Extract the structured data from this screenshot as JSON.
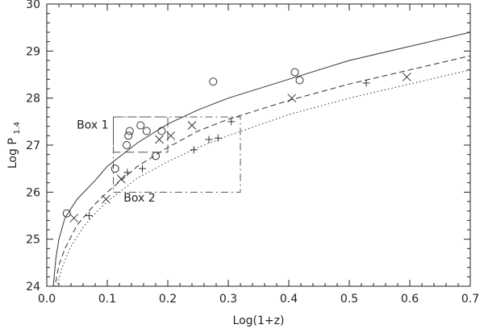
{
  "chart_data": {
    "type": "scatter",
    "title": "",
    "xlabel": "Log(1+z)",
    "ylabel_main": "Log P",
    "ylabel_sub": "1.4",
    "xlim": [
      0.0,
      0.7
    ],
    "ylim": [
      24,
      30
    ],
    "x_ticks": [
      0.0,
      0.1,
      0.2,
      0.3,
      0.4,
      0.5,
      0.6,
      0.7
    ],
    "x_tick_labels": [
      "0.0",
      "0.1",
      "0.2",
      "0.3",
      "0.4",
      "0.5",
      "0.6",
      "0.7"
    ],
    "y_ticks": [
      24,
      25,
      26,
      27,
      28,
      29,
      30
    ],
    "y_tick_labels": [
      "24",
      "25",
      "26",
      "27",
      "28",
      "29",
      "30"
    ],
    "grid": false,
    "curves": [
      {
        "style": "solid",
        "x": [
          0.01,
          0.015,
          0.02,
          0.03,
          0.05,
          0.08,
          0.1,
          0.15,
          0.2,
          0.25,
          0.3,
          0.4,
          0.5,
          0.6,
          0.7
        ],
        "y": [
          23.9,
          24.6,
          25.0,
          25.45,
          25.85,
          26.25,
          26.55,
          27.05,
          27.45,
          27.75,
          28.0,
          28.4,
          28.8,
          29.1,
          29.4
        ]
      },
      {
        "style": "dashed",
        "x": [
          0.012,
          0.02,
          0.03,
          0.05,
          0.08,
          0.1,
          0.15,
          0.2,
          0.25,
          0.3,
          0.4,
          0.5,
          0.6,
          0.7
        ],
        "y": [
          23.9,
          24.45,
          24.8,
          25.3,
          25.75,
          26.0,
          26.55,
          26.95,
          27.3,
          27.55,
          27.95,
          28.3,
          28.6,
          28.9
        ]
      },
      {
        "style": "dotted",
        "x": [
          0.015,
          0.025,
          0.04,
          0.06,
          0.08,
          0.1,
          0.15,
          0.2,
          0.25,
          0.3,
          0.4,
          0.5,
          0.6,
          0.7
        ],
        "y": [
          23.9,
          24.4,
          24.85,
          25.25,
          25.55,
          25.8,
          26.3,
          26.65,
          26.95,
          27.2,
          27.65,
          28.0,
          28.3,
          28.6
        ]
      }
    ],
    "series": [
      {
        "marker": "circle",
        "points": [
          [
            0.033,
            25.55
          ],
          [
            0.113,
            26.5
          ],
          [
            0.132,
            27.0
          ],
          [
            0.135,
            27.2
          ],
          [
            0.137,
            27.3
          ],
          [
            0.155,
            27.42
          ],
          [
            0.165,
            27.3
          ],
          [
            0.18,
            26.77
          ],
          [
            0.19,
            27.3
          ],
          [
            0.275,
            28.35
          ],
          [
            0.41,
            28.55
          ],
          [
            0.418,
            28.38
          ]
        ]
      },
      {
        "marker": "x",
        "points": [
          [
            0.045,
            25.45
          ],
          [
            0.098,
            25.85
          ],
          [
            0.123,
            26.28
          ],
          [
            0.186,
            27.12
          ],
          [
            0.205,
            27.2
          ],
          [
            0.24,
            27.42
          ],
          [
            0.405,
            28.0
          ],
          [
            0.595,
            28.45
          ]
        ]
      },
      {
        "marker": "plus",
        "points": [
          [
            0.07,
            25.5
          ],
          [
            0.133,
            26.42
          ],
          [
            0.158,
            26.5
          ],
          [
            0.243,
            26.9
          ],
          [
            0.268,
            27.12
          ],
          [
            0.283,
            27.15
          ],
          [
            0.305,
            27.5
          ],
          [
            0.528,
            28.32
          ]
        ]
      }
    ],
    "regions": [
      {
        "label": "Box 1",
        "style": "long-dash",
        "x": [
          0.11,
          0.2
        ],
        "y": [
          26.85,
          27.6
        ]
      },
      {
        "label": "Box 2",
        "style": "dash-dot",
        "x": [
          0.11,
          0.32
        ],
        "y": [
          26.0,
          27.6
        ]
      }
    ]
  }
}
